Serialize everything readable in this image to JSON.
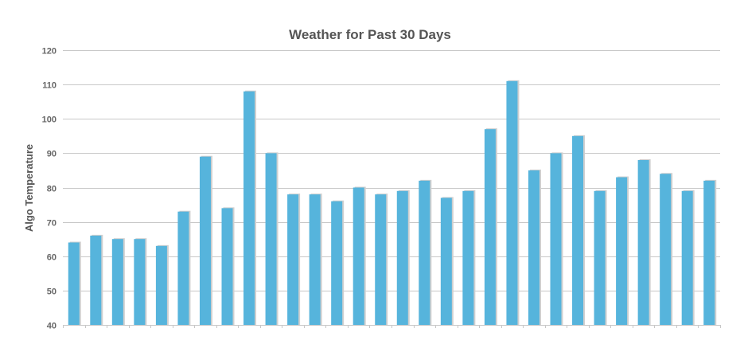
{
  "chart_data": {
    "type": "bar",
    "title": "Weather for Past 30 Days",
    "xlabel": "",
    "ylabel": "Algo Temperature",
    "ylim": [
      40,
      120
    ],
    "yticks": [
      40,
      50,
      60,
      70,
      80,
      90,
      100,
      110,
      120
    ],
    "grid": true,
    "legend": "none",
    "values": [
      64,
      66,
      65,
      65,
      63,
      73,
      89,
      74,
      108,
      90,
      78,
      78,
      76,
      80,
      78,
      79,
      82,
      77,
      79,
      97,
      111,
      85,
      90,
      95,
      79,
      83,
      88,
      84,
      79,
      82
    ],
    "colors": {
      "bar": "#56b4dc",
      "bar_shadow": "#cfcfcf"
    }
  }
}
